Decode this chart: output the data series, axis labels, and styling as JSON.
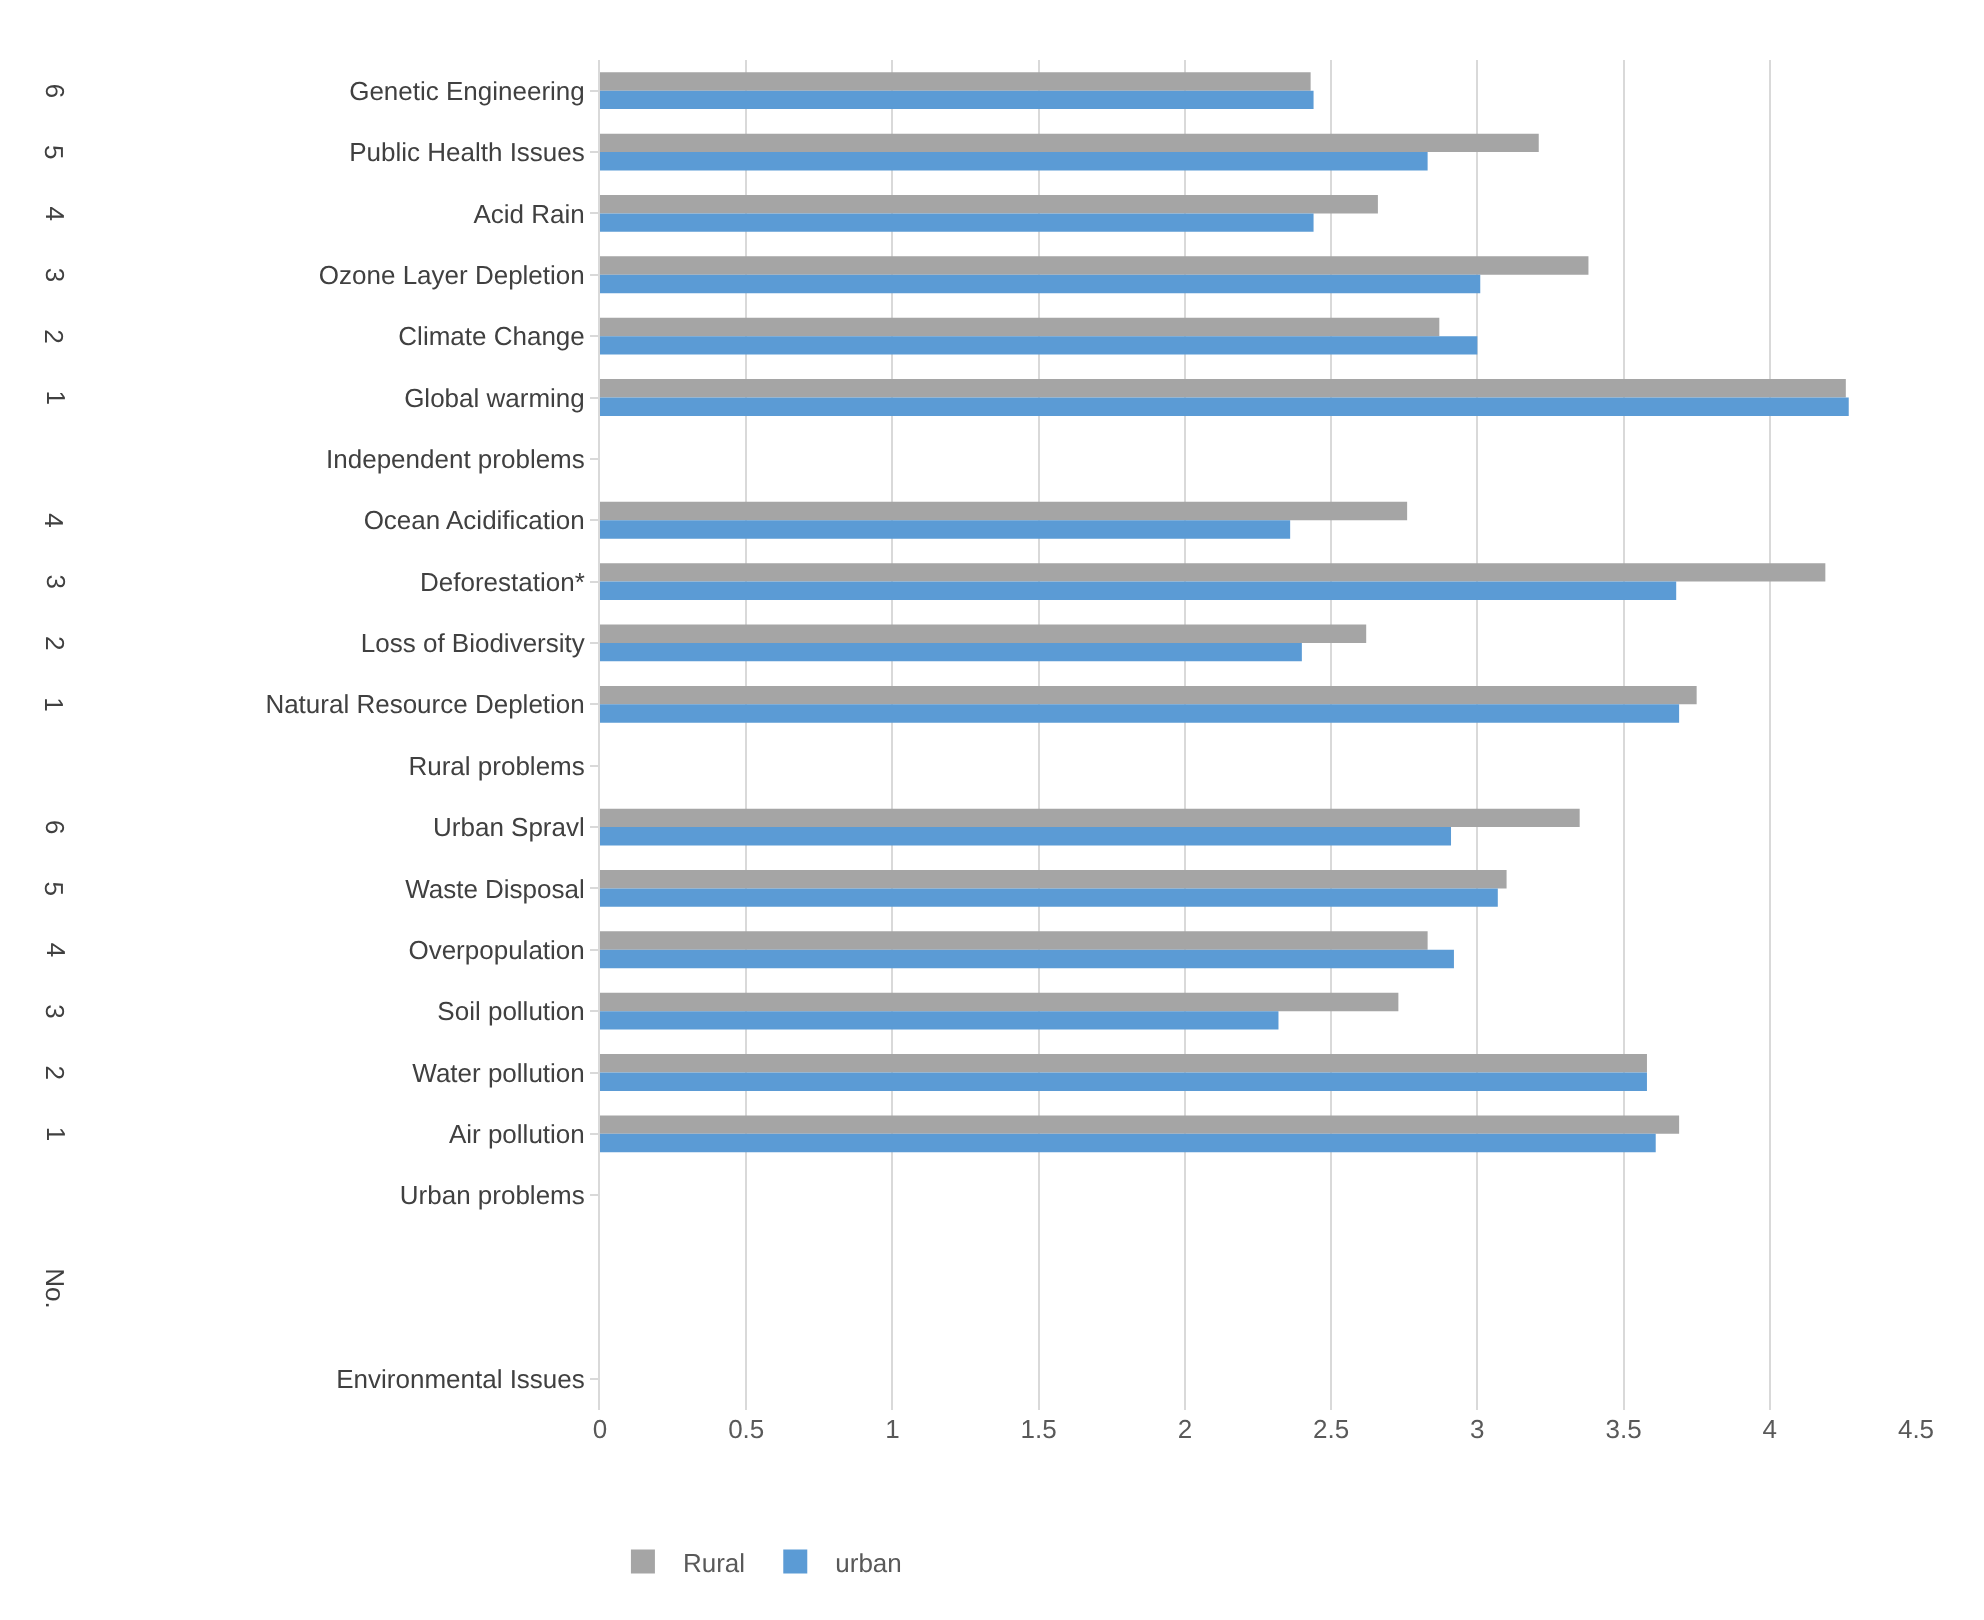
{
  "chart_data": {
    "type": "bar",
    "orientation": "horizontal",
    "categories": [
      "Genetic Engineering",
      "Public Health Issues",
      "Acid Rain",
      "Ozone Layer Depletion",
      "Climate Change",
      "Global warming",
      "Independent problems",
      "Ocean Acidification",
      "Deforestation*",
      "Loss of Biodiversity",
      "Natural Resource Depletion",
      "Rural problems",
      "Urban Spravl",
      "Waste Disposal",
      "Overpopulation",
      "Soil pollution",
      "Water pollution",
      "Air pollution",
      "Urban problems",
      null,
      null,
      "Environmental Issues"
    ],
    "series": [
      {
        "name": "Rural",
        "color": "#a5a5a5",
        "values": [
          2.43,
          3.21,
          2.66,
          3.38,
          2.87,
          4.26,
          null,
          2.76,
          4.19,
          2.62,
          3.75,
          null,
          3.35,
          3.1,
          2.83,
          2.73,
          3.58,
          3.69,
          null,
          null,
          null,
          null
        ]
      },
      {
        "name": "urban",
        "color": "#5b9bd5",
        "values": [
          2.44,
          2.83,
          2.44,
          3.01,
          3.0,
          4.27,
          null,
          2.36,
          3.68,
          2.4,
          3.69,
          null,
          2.91,
          3.07,
          2.92,
          2.32,
          3.58,
          3.61,
          null,
          null,
          null,
          null
        ]
      }
    ],
    "xlim": [
      0,
      4.5
    ],
    "xticks": [
      0,
      0.5,
      1,
      1.5,
      2,
      2.5,
      3,
      3.5,
      4,
      4.5
    ],
    "grid": "x",
    "legend": "bottom",
    "annotations": [
      "6",
      "5",
      "4",
      "3",
      "2",
      "1",
      "4",
      "3",
      "2",
      "1",
      "6",
      "5",
      "4",
      "3",
      "2",
      "1",
      "No."
    ]
  }
}
